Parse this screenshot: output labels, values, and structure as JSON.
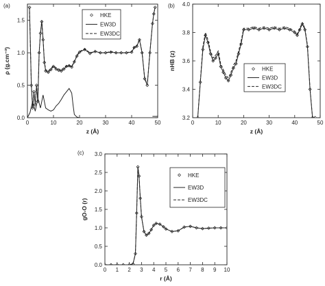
{
  "chart_data": [
    {
      "panel": "(a)",
      "type": "line",
      "xlabel": "z (Å)",
      "ylabel": "ρ (g.cm⁻³)",
      "xlim": [
        0,
        50
      ],
      "ylim": [
        0,
        1.75
      ],
      "xticks": [
        "0",
        "10",
        "20",
        "30",
        "40",
        "50"
      ],
      "yticks": [
        "0.0",
        "0.5",
        "1.0",
        "1.5"
      ],
      "legend_position": "top-center",
      "grid": false,
      "series": [
        {
          "name": "HKE",
          "style": "markers",
          "marker": "open-diamond",
          "x": [
            0.8,
            1.5,
            2,
            2.5,
            3,
            3.5,
            4,
            4.5,
            5,
            5.5,
            6,
            6.5,
            7,
            8,
            9,
            10,
            11,
            12,
            13,
            14,
            15,
            16,
            17,
            18,
            19,
            20,
            22,
            24,
            26,
            28,
            30,
            32,
            34,
            36,
            38,
            40,
            41,
            42,
            43,
            44,
            45,
            46,
            47,
            48,
            48.5,
            49
          ],
          "y": [
            1.7,
            0.5,
            0.15,
            0.4,
            0.2,
            0.5,
            0.25,
            1.0,
            1.3,
            1.48,
            1.2,
            0.85,
            0.72,
            0.7,
            0.74,
            0.79,
            0.75,
            0.73,
            0.72,
            0.75,
            0.79,
            0.8,
            0.78,
            0.86,
            0.95,
            1.01,
            1.05,
            0.99,
            1.02,
            1.0,
            1.0,
            1.01,
            1.0,
            1.0,
            1.0,
            1.01,
            1.08,
            1.1,
            1.2,
            1.0,
            0.6,
            0.5,
            1.0,
            1.45,
            1.6,
            1.7
          ]
        },
        {
          "name": "EW3D",
          "style": "solid",
          "x": [
            0.8,
            1.5,
            2,
            2.5,
            3,
            3.5,
            4,
            4.5,
            5,
            5.5,
            6,
            6.5,
            7,
            8,
            9,
            10,
            11,
            12,
            13,
            14,
            15,
            16,
            17,
            18,
            19,
            20,
            22,
            24,
            26,
            28,
            30,
            32,
            34,
            36,
            38,
            40,
            41,
            42,
            43,
            44,
            45,
            46,
            47,
            48,
            48.5,
            49
          ],
          "y": [
            1.7,
            0.5,
            0.15,
            0.4,
            0.2,
            0.5,
            0.25,
            1.0,
            1.3,
            1.48,
            1.2,
            0.85,
            0.72,
            0.7,
            0.74,
            0.79,
            0.75,
            0.73,
            0.72,
            0.75,
            0.79,
            0.8,
            0.78,
            0.86,
            0.95,
            1.01,
            1.05,
            0.99,
            1.02,
            1.0,
            1.0,
            1.01,
            1.0,
            1.0,
            1.0,
            1.01,
            1.08,
            1.1,
            1.2,
            1.0,
            0.6,
            0.5,
            1.0,
            1.45,
            1.6,
            1.7
          ]
        },
        {
          "name": "EW3DC",
          "style": "dashed",
          "x": [
            0.8,
            1.5,
            2,
            2.5,
            3,
            3.5,
            4,
            4.5,
            5,
            5.5,
            6,
            6.5,
            7,
            8,
            9,
            10,
            11,
            12,
            13,
            14,
            15,
            16,
            17,
            18,
            19,
            20,
            22,
            24,
            26,
            28,
            30,
            32,
            34,
            36,
            38,
            40,
            41,
            42,
            43,
            44,
            45,
            46,
            47,
            48,
            48.5,
            49
          ],
          "y": [
            1.7,
            0.5,
            0.15,
            0.4,
            0.2,
            0.5,
            0.25,
            1.0,
            1.3,
            1.5,
            1.22,
            0.87,
            0.74,
            0.72,
            0.76,
            0.8,
            0.77,
            0.75,
            0.74,
            0.77,
            0.8,
            0.81,
            0.79,
            0.87,
            0.96,
            1.02,
            1.06,
            1.0,
            1.02,
            1.0,
            1.0,
            1.02,
            1.0,
            1.0,
            1.0,
            1.02,
            1.09,
            1.11,
            1.21,
            1.01,
            0.61,
            0.51,
            1.0,
            1.45,
            1.6,
            1.7
          ]
        },
        {
          "name": "",
          "style": "solid",
          "x": [
            0,
            1,
            2,
            3,
            4,
            5,
            6,
            7,
            8,
            9,
            10,
            11,
            12,
            13,
            14,
            15,
            16,
            17,
            17.5,
            18,
            19,
            20
          ],
          "y": [
            0,
            0.08,
            0.25,
            0.1,
            0.3,
            0.15,
            0.35,
            0.15,
            0.12,
            0.1,
            0.12,
            0.18,
            0.22,
            0.28,
            0.35,
            0.4,
            0.45,
            0.38,
            0.2,
            0.05,
            0.01,
            0
          ]
        },
        {
          "name": "",
          "style": "solid",
          "x": [
            48,
            49,
            50
          ],
          "y": [
            0.02,
            0.02,
            0.02
          ]
        }
      ]
    },
    {
      "panel": "(b)",
      "type": "line",
      "xlabel": "z (Å)",
      "ylabel": "nHB (z)",
      "xlim": [
        0,
        50
      ],
      "ylim": [
        3.2,
        4.0
      ],
      "xticks": [
        "0",
        "10",
        "20",
        "30",
        "40",
        "50"
      ],
      "yticks": [
        "3.2",
        "3.4",
        "3.6",
        "3.8",
        "4.0"
      ],
      "legend_position": "center",
      "grid": false,
      "series": [
        {
          "name": "HKE",
          "style": "markers",
          "marker": "open-diamond",
          "x": [
            2,
            3,
            4,
            5,
            6,
            7,
            8,
            9,
            10,
            11,
            12,
            13,
            14,
            15,
            16,
            17,
            18,
            19,
            20,
            22,
            24,
            26,
            28,
            30,
            32,
            34,
            36,
            38,
            40,
            41,
            42,
            43,
            44,
            45,
            46,
            47,
            48
          ],
          "y": [
            3.2,
            3.45,
            3.68,
            3.78,
            3.73,
            3.65,
            3.6,
            3.62,
            3.65,
            3.56,
            3.52,
            3.48,
            3.46,
            3.5,
            3.55,
            3.58,
            3.65,
            3.72,
            3.82,
            3.82,
            3.83,
            3.82,
            3.83,
            3.82,
            3.83,
            3.82,
            3.83,
            3.82,
            3.8,
            3.78,
            3.82,
            3.86,
            3.82,
            3.7,
            3.4,
            3.2,
            3.2
          ]
        },
        {
          "name": "EW3D",
          "style": "solid",
          "x": [
            2,
            3,
            4,
            5,
            6,
            7,
            8,
            9,
            10,
            11,
            12,
            13,
            14,
            15,
            16,
            17,
            18,
            19,
            20,
            22,
            24,
            26,
            28,
            30,
            32,
            34,
            36,
            38,
            40,
            41,
            42,
            43,
            44,
            45,
            46,
            47,
            48
          ],
          "y": [
            3.2,
            3.45,
            3.68,
            3.78,
            3.73,
            3.65,
            3.6,
            3.62,
            3.65,
            3.56,
            3.52,
            3.48,
            3.46,
            3.5,
            3.55,
            3.58,
            3.65,
            3.72,
            3.82,
            3.82,
            3.83,
            3.82,
            3.83,
            3.82,
            3.83,
            3.82,
            3.83,
            3.82,
            3.8,
            3.78,
            3.82,
            3.86,
            3.82,
            3.7,
            3.4,
            3.2,
            3.2
          ]
        },
        {
          "name": "EW3DC",
          "style": "dashed",
          "x": [
            2,
            3,
            4,
            5,
            6,
            7,
            8,
            9,
            10,
            11,
            12,
            13,
            14,
            15,
            16,
            17,
            18,
            19,
            20,
            22,
            24,
            26,
            28,
            30,
            32,
            34,
            36,
            38,
            40,
            41,
            42,
            43,
            44,
            45,
            46,
            47,
            48
          ],
          "y": [
            3.2,
            3.46,
            3.7,
            3.8,
            3.75,
            3.67,
            3.62,
            3.64,
            3.67,
            3.58,
            3.54,
            3.5,
            3.48,
            3.52,
            3.57,
            3.6,
            3.67,
            3.74,
            3.83,
            3.83,
            3.84,
            3.83,
            3.84,
            3.83,
            3.84,
            3.83,
            3.84,
            3.83,
            3.81,
            3.79,
            3.83,
            3.87,
            3.83,
            3.71,
            3.41,
            3.2,
            3.2
          ]
        }
      ]
    },
    {
      "panel": "(c)",
      "type": "line",
      "xlabel": "r (Å)",
      "ylabel": "gO-O (r)",
      "xlim": [
        0,
        10
      ],
      "ylim": [
        0,
        3.0
      ],
      "xticks": [
        "0",
        "1",
        "2",
        "3",
        "4",
        "5",
        "6",
        "7",
        "8",
        "9",
        "10"
      ],
      "yticks": [
        "0.0",
        "0.5",
        "1.0",
        "1.5",
        "2.0",
        "2.5",
        "3.0"
      ],
      "legend_position": "top-right",
      "grid": false,
      "series": [
        {
          "name": "HKE",
          "style": "markers",
          "marker": "open-diamond",
          "x": [
            0,
            0.5,
            1,
            1.5,
            2,
            2.3,
            2.5,
            2.6,
            2.7,
            2.8,
            2.9,
            3,
            3.2,
            3.4,
            3.6,
            3.8,
            4,
            4.2,
            4.5,
            4.8,
            5,
            5.5,
            6,
            6.5,
            7,
            7.5,
            8,
            8.5,
            9,
            9.5,
            10
          ],
          "y": [
            0,
            0,
            0,
            0,
            0,
            0.02,
            0.3,
            1.4,
            2.65,
            2.4,
            1.8,
            1.3,
            0.9,
            0.8,
            0.85,
            0.95,
            1.07,
            1.12,
            1.1,
            1.03,
            0.97,
            0.9,
            0.92,
            1.02,
            1.04,
            1.0,
            0.98,
            0.99,
            1.0,
            1.0,
            1.0
          ]
        },
        {
          "name": "EW3D",
          "style": "solid",
          "x": [
            0,
            0.5,
            1,
            1.5,
            2,
            2.3,
            2.5,
            2.6,
            2.7,
            2.8,
            2.9,
            3,
            3.2,
            3.4,
            3.6,
            3.8,
            4,
            4.2,
            4.5,
            4.8,
            5,
            5.5,
            6,
            6.5,
            7,
            7.5,
            8,
            8.5,
            9,
            9.5,
            10
          ],
          "y": [
            0,
            0,
            0,
            0,
            0,
            0.02,
            0.3,
            1.4,
            2.65,
            2.4,
            1.8,
            1.3,
            0.9,
            0.8,
            0.85,
            0.95,
            1.07,
            1.12,
            1.1,
            1.03,
            0.97,
            0.9,
            0.92,
            1.02,
            1.04,
            1.0,
            0.98,
            0.99,
            1.0,
            1.0,
            1.0
          ]
        },
        {
          "name": "EW3DC",
          "style": "dashed",
          "x": [
            0,
            0.5,
            1,
            1.5,
            2,
            2.3,
            2.5,
            2.6,
            2.7,
            2.8,
            2.9,
            3,
            3.2,
            3.4,
            3.6,
            3.8,
            4,
            4.2,
            4.5,
            4.8,
            5,
            5.5,
            6,
            6.5,
            7,
            7.5,
            8,
            8.5,
            9,
            9.5,
            10
          ],
          "y": [
            0,
            0,
            0,
            0,
            0,
            0.02,
            0.3,
            1.4,
            2.65,
            2.4,
            1.8,
            1.3,
            0.9,
            0.8,
            0.85,
            0.95,
            1.07,
            1.12,
            1.1,
            1.03,
            0.97,
            0.9,
            0.92,
            1.02,
            1.04,
            1.0,
            0.98,
            0.99,
            1.0,
            1.0,
            1.0
          ]
        }
      ]
    }
  ]
}
